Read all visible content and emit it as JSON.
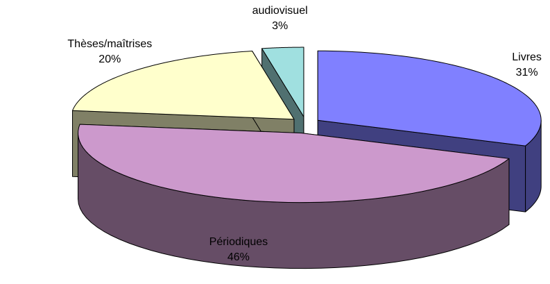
{
  "chart_data": {
    "type": "pie3d",
    "categories": [
      "Livres",
      "Périodiques",
      "Thèses/maîtrises",
      "audiovisuel"
    ],
    "values": [
      31,
      46,
      20,
      3
    ],
    "value_labels": [
      "31%",
      "46%",
      "20%",
      "3%"
    ],
    "colors": [
      "#8080ff",
      "#cc99cc",
      "#ffffcc",
      "#a0e0e0"
    ]
  }
}
